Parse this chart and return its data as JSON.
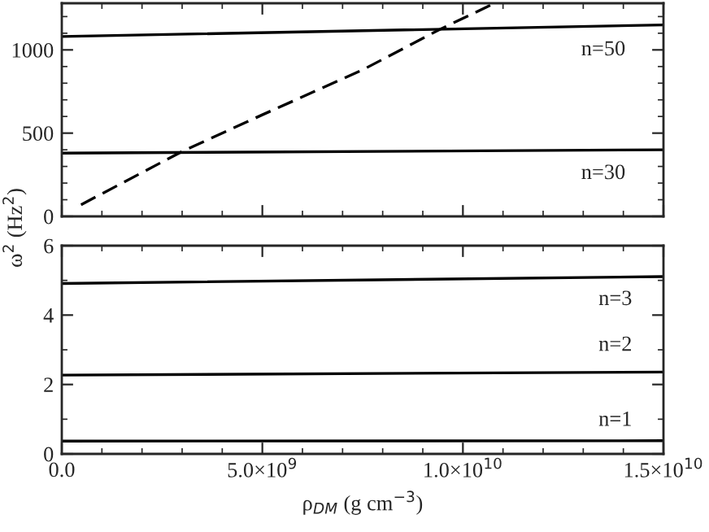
{
  "chart_data": [
    {
      "type": "line",
      "ylabel": "ω$^{2}$ (Hz$^{2}$)",
      "xlim": [
        0,
        15000000000.0
      ],
      "xticks": [
        0,
        5000000000.0,
        10000000000.0,
        15000000000.0
      ],
      "ylim": [
        0,
        1280
      ],
      "yticks": [
        0,
        500,
        1000
      ],
      "tick_labels": "y",
      "grid": false,
      "legend": false,
      "series": [
        {
          "color": "#000000",
          "line_style": "solid",
          "x": [
            0,
            15000000000.0
          ],
          "values": [
            1080,
            1150
          ]
        },
        {
          "color": "#000000",
          "line_style": "solid",
          "x": [
            0,
            15000000000.0
          ],
          "values": [
            380,
            400
          ]
        },
        {
          "color": "#000000",
          "line_style": "dashed",
          "x": [
            480000000.0,
            3000000000.0,
            5000000000.0,
            7500000000.0,
            9400000000.0,
            10700000000.0
          ],
          "values": [
            70,
            390,
            610,
            880,
            1120,
            1270
          ]
        }
      ],
      "annotations": [
        "n=50",
        "n=30"
      ]
    },
    {
      "type": "line",
      "xlabel": "ρ$_{DM}$ (g cm$^{−3}$)",
      "xlim": [
        0,
        15000000000.0
      ],
      "xticks": [
        {
          "value": 0,
          "label": "0.0"
        },
        {
          "value": 5000000000.0,
          "label": "5.0×10$^{9}$"
        },
        {
          "value": 10000000000.0,
          "label": "1.0×10$^{10}$"
        },
        {
          "value": 15000000000.0,
          "label": "1.5×10$^{10}$"
        }
      ],
      "ylim": [
        0,
        6
      ],
      "yticks": [
        0,
        2,
        4,
        6
      ],
      "grid": false,
      "legend": false,
      "series": [
        {
          "color": "#000000",
          "line_style": "solid",
          "x": [
            0,
            15000000000.0
          ],
          "values": [
            4.91,
            5.11
          ]
        },
        {
          "color": "#000000",
          "line_style": "solid",
          "x": [
            0,
            15000000000.0
          ],
          "values": [
            2.27,
            2.36
          ]
        },
        {
          "color": "#000000",
          "line_style": "solid",
          "x": [
            0,
            15000000000.0
          ],
          "values": [
            0.37,
            0.38
          ]
        }
      ],
      "annotations": [
        "n=3",
        "n=2",
        "n=1"
      ]
    }
  ]
}
